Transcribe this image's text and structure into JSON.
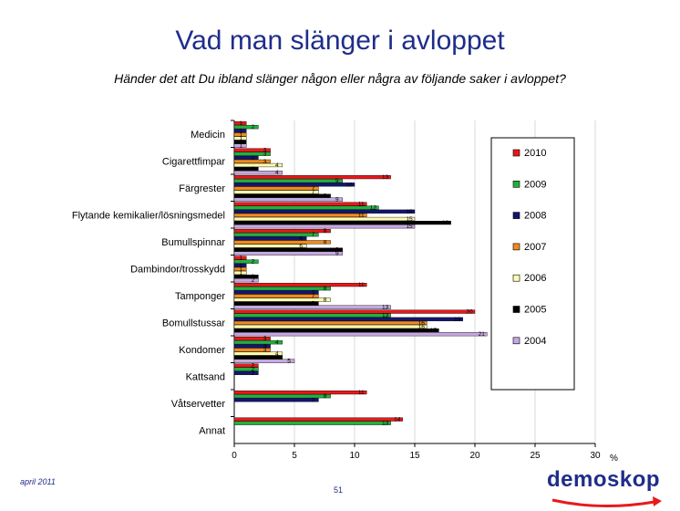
{
  "title": "Vad man slänger i avloppet",
  "subtitle": "Händer det att Du ibland slänger någon eller några av följande saker i avloppet?",
  "footer": {
    "date": "april 2011",
    "page": "51"
  },
  "logo": {
    "text": "demoskop"
  },
  "chart_data": {
    "type": "bar",
    "orientation": "horizontal",
    "categories": [
      "Medicin",
      "Cigarettfimpar",
      "Färgrester",
      "Flytande kemikalier/lösningsmedel",
      "Bumullspinnar",
      "Dambindor/trosskydd",
      "Tamponger",
      "Bomullstussar",
      "Kondomer",
      "Kattsand",
      "Våtservetter",
      "Annat"
    ],
    "series": [
      {
        "name": "2010",
        "color": "#e8191a",
        "values": [
          1,
          3,
          13,
          11,
          8,
          1,
          11,
          20,
          3,
          2,
          11,
          14
        ]
      },
      {
        "name": "2009",
        "color": "#22b040",
        "values": [
          2,
          3,
          9,
          12,
          7,
          2,
          8,
          13,
          4,
          2,
          8,
          13
        ]
      },
      {
        "name": "2008",
        "color": "#13156e",
        "values": [
          1,
          2,
          10,
          15,
          6,
          1,
          7,
          19,
          3,
          2,
          7,
          null
        ]
      },
      {
        "name": "2007",
        "color": "#f08a1e",
        "values": [
          1,
          3,
          7,
          11,
          8,
          1,
          7,
          16,
          3,
          null,
          null,
          null
        ]
      },
      {
        "name": "2006",
        "color": "#fffbb0",
        "values": [
          1,
          4,
          7,
          15,
          6,
          1,
          8,
          16,
          4,
          null,
          null,
          null
        ]
      },
      {
        "name": "2005",
        "color": "#000000",
        "values": [
          1,
          2,
          8,
          18,
          9,
          2,
          7,
          17,
          4,
          null,
          null,
          null
        ]
      },
      {
        "name": "2004",
        "color": "#c5a8e0",
        "values": [
          1,
          4,
          9,
          15,
          9,
          2,
          13,
          21,
          5,
          null,
          null,
          null
        ]
      }
    ],
    "xlim": [
      0,
      30
    ],
    "xticks": [
      0,
      5,
      10,
      15,
      20,
      25,
      30
    ],
    "xunit": "%",
    "legend": "right"
  }
}
